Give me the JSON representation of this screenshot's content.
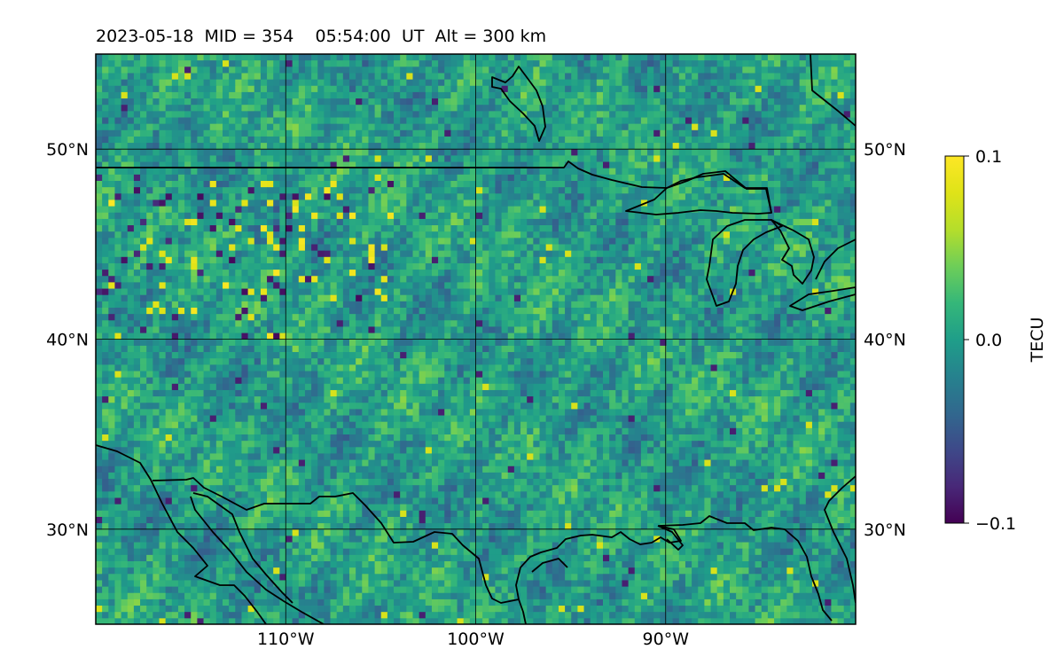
{
  "title": "2023-05-18  MID = 354    05:54:00  UT  Alt = 300 km",
  "map": {
    "lon_range": [
      -120,
      -80
    ],
    "lat_range": [
      25,
      55
    ],
    "lon_ticks": [
      {
        "value": -110,
        "label": "110°W"
      },
      {
        "value": -100,
        "label": "100°W"
      },
      {
        "value": -90,
        "label": "90°W"
      }
    ],
    "lat_ticks": [
      {
        "value": 50,
        "label": "50°N"
      },
      {
        "value": 40,
        "label": "40°N"
      },
      {
        "value": 30,
        "label": "30°N"
      }
    ],
    "gridlines": true,
    "coastlines": true
  },
  "colorbar": {
    "label": "TECU",
    "colormap": "viridis",
    "min": -0.1,
    "max": 0.1,
    "ticks": [
      {
        "value": 0.1,
        "label": "0.1"
      },
      {
        "value": 0.0,
        "label": "0.0"
      },
      {
        "value": -0.1,
        "label": "−0.1"
      }
    ]
  },
  "colors": {
    "viridis_low": "#440154",
    "viridis_mid": "#21918c",
    "viridis_high": "#fde725"
  }
}
